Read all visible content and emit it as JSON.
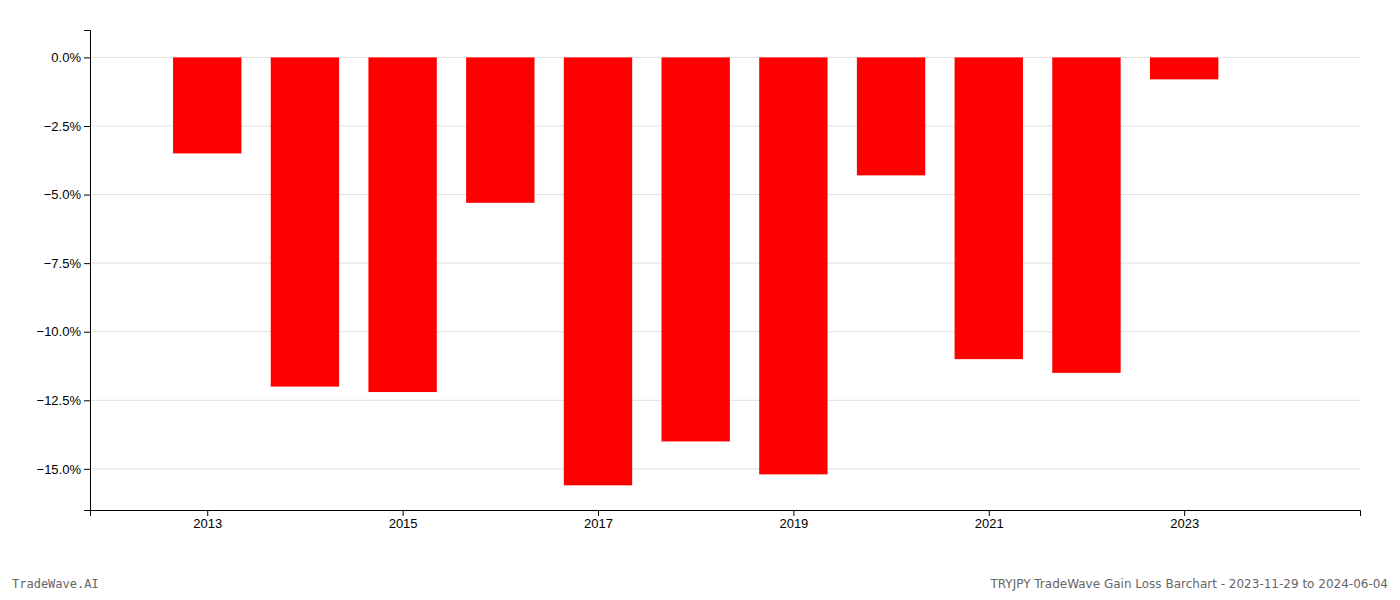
{
  "chart_data": {
    "type": "bar",
    "x": [
      2013,
      2014,
      2015,
      2016,
      2017,
      2018,
      2019,
      2020,
      2021,
      2022,
      2023
    ],
    "values": [
      -3.5,
      -12.0,
      -12.2,
      -5.3,
      -15.6,
      -14.0,
      -15.2,
      -4.3,
      -11.0,
      -11.5,
      -0.8
    ],
    "color": "#ff0000",
    "xlim": [
      2011.8,
      2024.8
    ],
    "xticks": [
      2013,
      2015,
      2017,
      2019,
      2021,
      2023
    ],
    "ylim": [
      -16.5,
      1.0
    ],
    "yticks": [
      {
        "value": 0.0,
        "label": "0.0%"
      },
      {
        "value": -2.5,
        "label": "−2.5%"
      },
      {
        "value": -5.0,
        "label": "−5.0%"
      },
      {
        "value": -7.5,
        "label": "−7.5%"
      },
      {
        "value": -10.0,
        "label": "−10.0%"
      },
      {
        "value": -12.5,
        "label": "−12.5%"
      },
      {
        "value": -15.0,
        "label": "−15.0%"
      }
    ],
    "grid": true,
    "annotations": [
      "TradeWave.AI",
      "TRYJPY TradeWave Gain Loss Barchart - 2023-11-29 to 2024-06-04"
    ]
  }
}
